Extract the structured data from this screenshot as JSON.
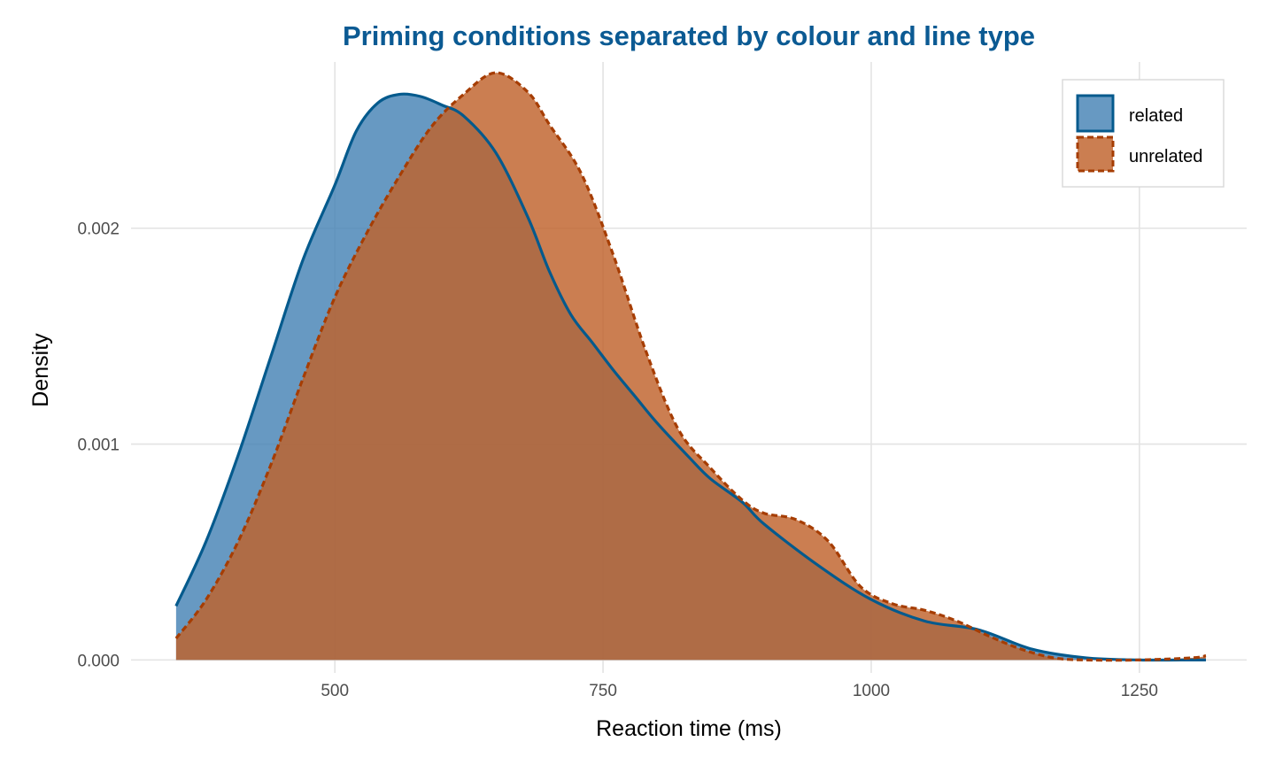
{
  "colors": {
    "related_fill": "#4682b4",
    "related_line": "#045a8d",
    "unrelated_fill": "#c0622b",
    "unrelated_line": "#a63d03",
    "overlap_line": "#5f4a3b",
    "title": "#0b5a93",
    "grid": "#e3e3e3"
  },
  "chart_data": {
    "type": "area",
    "title": "Priming conditions separated by colour and line type",
    "xlabel": "Reaction time (ms)",
    "ylabel": "Density",
    "xlim": [
      310,
      1350
    ],
    "ylim": [
      -6e-05,
      0.00277
    ],
    "x_ticks": [
      500,
      750,
      1000,
      1250
    ],
    "x_tick_labels": [
      "500",
      "750",
      "1000",
      "1250"
    ],
    "y_ticks": [
      0.0,
      0.001,
      0.002
    ],
    "y_tick_labels": [
      "0.000",
      "0.001",
      "0.002"
    ],
    "grid": true,
    "legend_position": "top-right",
    "series": [
      {
        "name": "related",
        "line_type": "solid",
        "x": [
          352,
          380,
          410,
          440,
          470,
          500,
          520,
          540,
          560,
          580,
          600,
          620,
          650,
          680,
          700,
          720,
          740,
          760,
          780,
          800,
          830,
          850,
          880,
          900,
          950,
          1000,
          1050,
          1100,
          1150,
          1200,
          1250,
          1300,
          1312
        ],
        "y": [
          0.00025,
          0.00055,
          0.00095,
          0.0014,
          0.00185,
          0.0022,
          0.00245,
          0.00258,
          0.00262,
          0.00261,
          0.00257,
          0.00252,
          0.00235,
          0.00205,
          0.0018,
          0.0016,
          0.00147,
          0.00134,
          0.00122,
          0.0011,
          0.00094,
          0.00084,
          0.00073,
          0.00063,
          0.00044,
          0.00028,
          0.00018,
          0.00014,
          5e-05,
          1e-05,
          0.0,
          0.0,
          0.0
        ]
      },
      {
        "name": "unrelated",
        "line_type": "dashed",
        "x": [
          352,
          380,
          410,
          440,
          470,
          500,
          530,
          560,
          590,
          620,
          650,
          680,
          700,
          730,
          760,
          790,
          820,
          850,
          880,
          900,
          930,
          960,
          990,
          1020,
          1050,
          1080,
          1110,
          1140,
          1170,
          1200,
          1250,
          1300,
          1312
        ],
        "y": [
          0.0001,
          0.00028,
          0.00055,
          0.0009,
          0.0013,
          0.00168,
          0.00198,
          0.00224,
          0.00247,
          0.00262,
          0.00272,
          0.00263,
          0.00248,
          0.00225,
          0.00187,
          0.00143,
          0.00107,
          0.00089,
          0.00074,
          0.00068,
          0.00065,
          0.00055,
          0.00034,
          0.00026,
          0.00023,
          0.00018,
          0.00011,
          5e-05,
          1e-05,
          0.0,
          0.0,
          1e-05,
          2e-05
        ]
      }
    ]
  }
}
